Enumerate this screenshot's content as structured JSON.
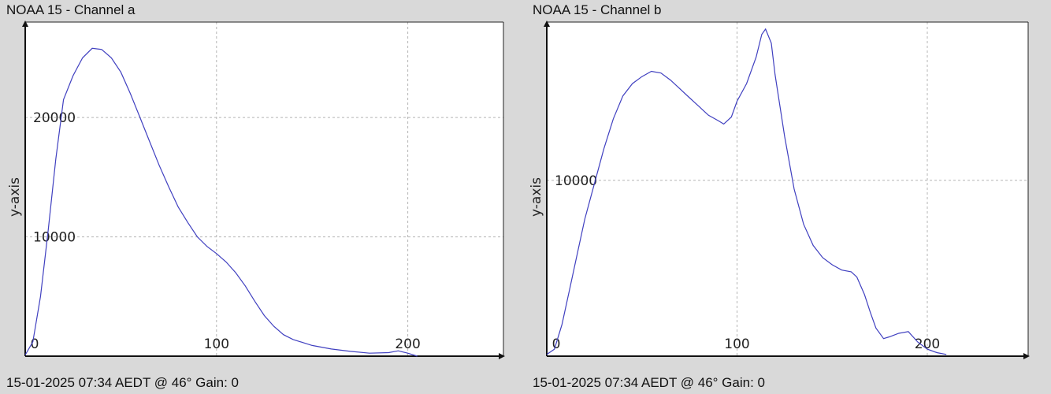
{
  "chart_data": [
    {
      "type": "line",
      "title": "NOAA 15 - Channel a",
      "status": "15-01-2025 07:34 AEDT @ 46° Gain: 0",
      "ylabel": "y-axis",
      "xlim": [
        0,
        250
      ],
      "ylim": [
        0,
        28000
      ],
      "xticks": [
        0,
        100,
        200
      ],
      "yticks": [
        10000,
        20000
      ],
      "grid": true,
      "series": [
        {
          "color": "#4040c0",
          "x": [
            0,
            4,
            8,
            12,
            16,
            20,
            25,
            30,
            35,
            40,
            45,
            50,
            55,
            60,
            65,
            70,
            75,
            80,
            85,
            90,
            95,
            100,
            105,
            110,
            115,
            120,
            125,
            130,
            135,
            140,
            150,
            160,
            170,
            180,
            190,
            195,
            200,
            205
          ],
          "y": [
            100,
            1200,
            5000,
            10500,
            16500,
            21500,
            23500,
            25000,
            25800,
            25700,
            25000,
            23800,
            22000,
            20000,
            18000,
            16000,
            14200,
            12500,
            11200,
            10000,
            9200,
            8600,
            7900,
            7000,
            5900,
            4600,
            3400,
            2500,
            1800,
            1400,
            900,
            600,
            400,
            250,
            300,
            450,
            250,
            0
          ]
        }
      ]
    },
    {
      "type": "line",
      "title": "NOAA 15 - Channel b",
      "status": "15-01-2025 07:34 AEDT @ 46° Gain: 0",
      "ylabel": "y-axis",
      "xlim": [
        0,
        253
      ],
      "ylim": [
        0,
        19000
      ],
      "xticks": [
        0,
        100,
        200
      ],
      "yticks": [
        10000
      ],
      "grid": true,
      "series": [
        {
          "color": "#4040c0",
          "x": [
            0,
            4,
            8,
            12,
            16,
            20,
            25,
            30,
            35,
            40,
            45,
            50,
            55,
            60,
            65,
            70,
            75,
            80,
            85,
            90,
            93,
            97,
            100,
            105,
            110,
            113,
            115,
            118,
            120,
            125,
            130,
            135,
            140,
            145,
            150,
            155,
            160,
            163,
            167,
            170,
            173,
            177,
            180,
            185,
            190,
            195,
            200,
            205,
            210
          ],
          "y": [
            100,
            400,
            1800,
            3800,
            5800,
            7800,
            9800,
            11800,
            13500,
            14800,
            15500,
            15900,
            16200,
            16100,
            15700,
            15200,
            14700,
            14200,
            13700,
            13400,
            13200,
            13600,
            14500,
            15500,
            17000,
            18300,
            18600,
            17800,
            16000,
            12500,
            9500,
            7500,
            6300,
            5600,
            5200,
            4900,
            4800,
            4500,
            3500,
            2500,
            1600,
            1000,
            1100,
            1300,
            1400,
            800,
            400,
            200,
            100
          ]
        }
      ]
    }
  ]
}
